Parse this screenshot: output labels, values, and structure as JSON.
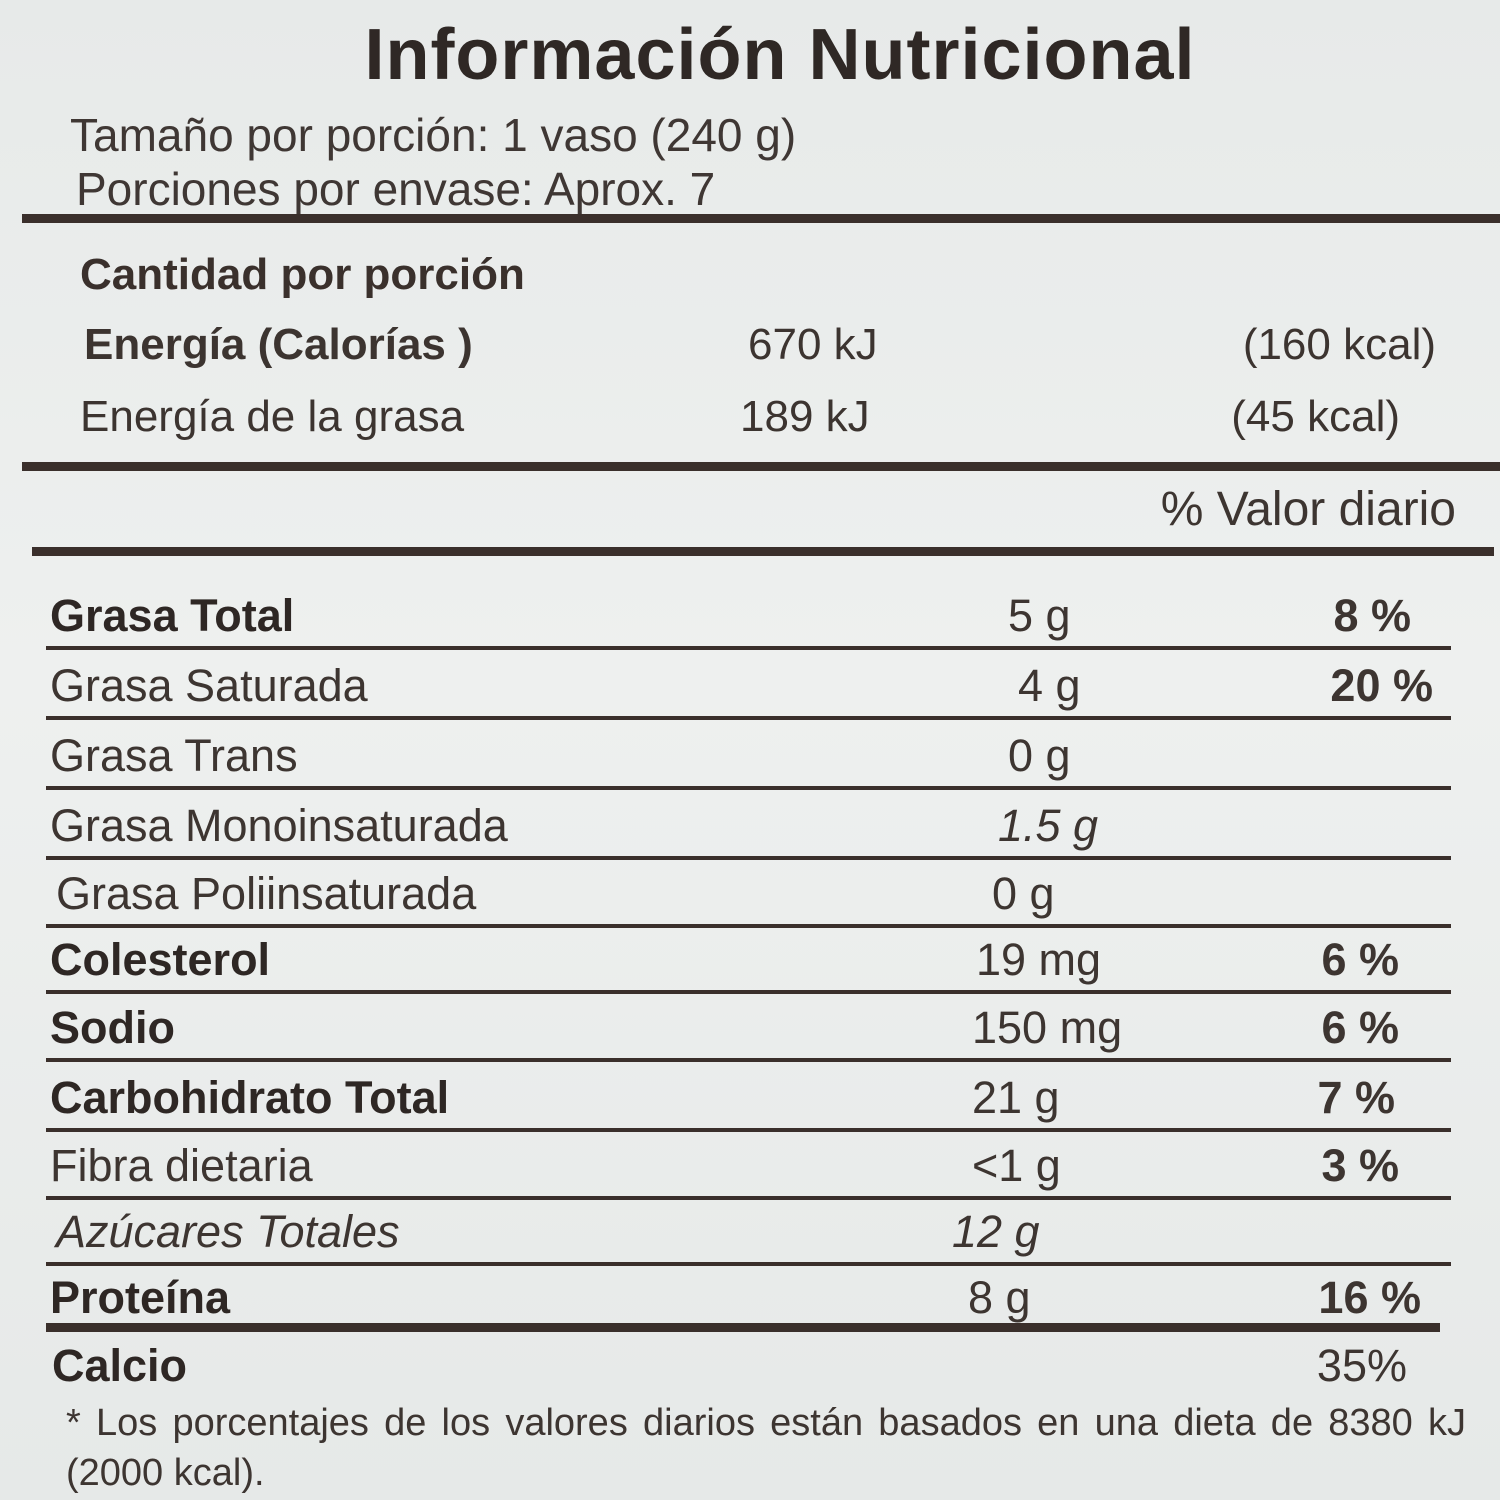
{
  "label": {
    "title": "Información Nutricional",
    "serving_size": "Tamaño por porción: 1 vaso (240 g)",
    "servings_per_container": "Porciones por envase: Aprox. 7",
    "amount_per_serving": "Cantidad por porción",
    "energy": {
      "label": "Energía  (Calorías )",
      "kj": "670 kJ",
      "kcal": "(160 kcal)"
    },
    "energy_from_fat": {
      "label": "Energía de la grasa",
      "kj": "189 kJ",
      "kcal": "(45 kcal)"
    },
    "daily_value_header": "% Valor diario",
    "nutrients": [
      {
        "name": "Grasa Total",
        "amount": "5 g",
        "dv": "8 %"
      },
      {
        "name": "Grasa Saturada",
        "amount": "4 g",
        "dv": "20 %"
      },
      {
        "name": "Grasa Trans",
        "amount": "0 g",
        "dv": ""
      },
      {
        "name": "Grasa Monoinsaturada",
        "amount": "1.5 g",
        "dv": ""
      },
      {
        "name": "Grasa Poliinsaturada",
        "amount": "0 g",
        "dv": ""
      },
      {
        "name": "Colesterol",
        "amount": "19 mg",
        "dv": "6 %"
      },
      {
        "name": "Sodio",
        "amount": "150 mg",
        "dv": "6 %"
      },
      {
        "name": "Carbohidrato Total",
        "amount": "21 g",
        "dv": "7 %"
      },
      {
        "name": "Fibra dietaria",
        "amount": "<1 g",
        "dv": "3 %"
      },
      {
        "name": "Azúcares Totales",
        "amount": "12 g",
        "dv": ""
      },
      {
        "name": "Proteína",
        "amount": "8 g",
        "dv": "16 %"
      },
      {
        "name": "Calcio",
        "amount": "",
        "dv": "35%"
      }
    ],
    "footnote": "* Los  porcentajes  de  los valores  diarios  están basados en una dieta  de 8380 kJ (2000  kcal)."
  }
}
